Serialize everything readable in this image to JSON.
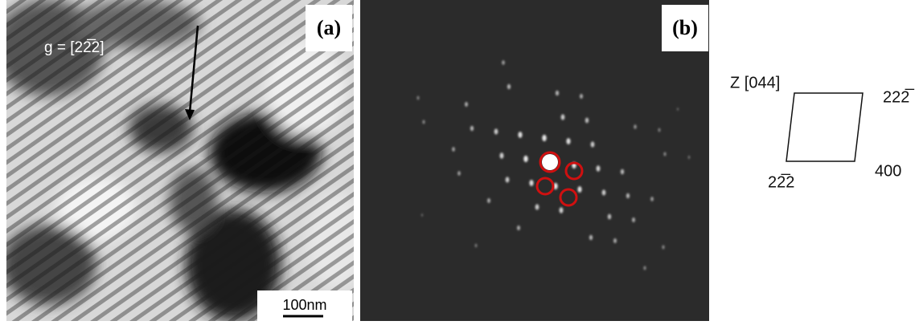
{
  "panel_a": {
    "label": "(a)",
    "g_vector": "g = [22̅2]",
    "scale_bar": "100nm"
  },
  "panel_b": {
    "label": "(b)"
  },
  "diagram": {
    "zone_axis": "Z [044]",
    "top_right": "222̅",
    "bottom_left": "22̅2",
    "bottom_right": "400"
  }
}
